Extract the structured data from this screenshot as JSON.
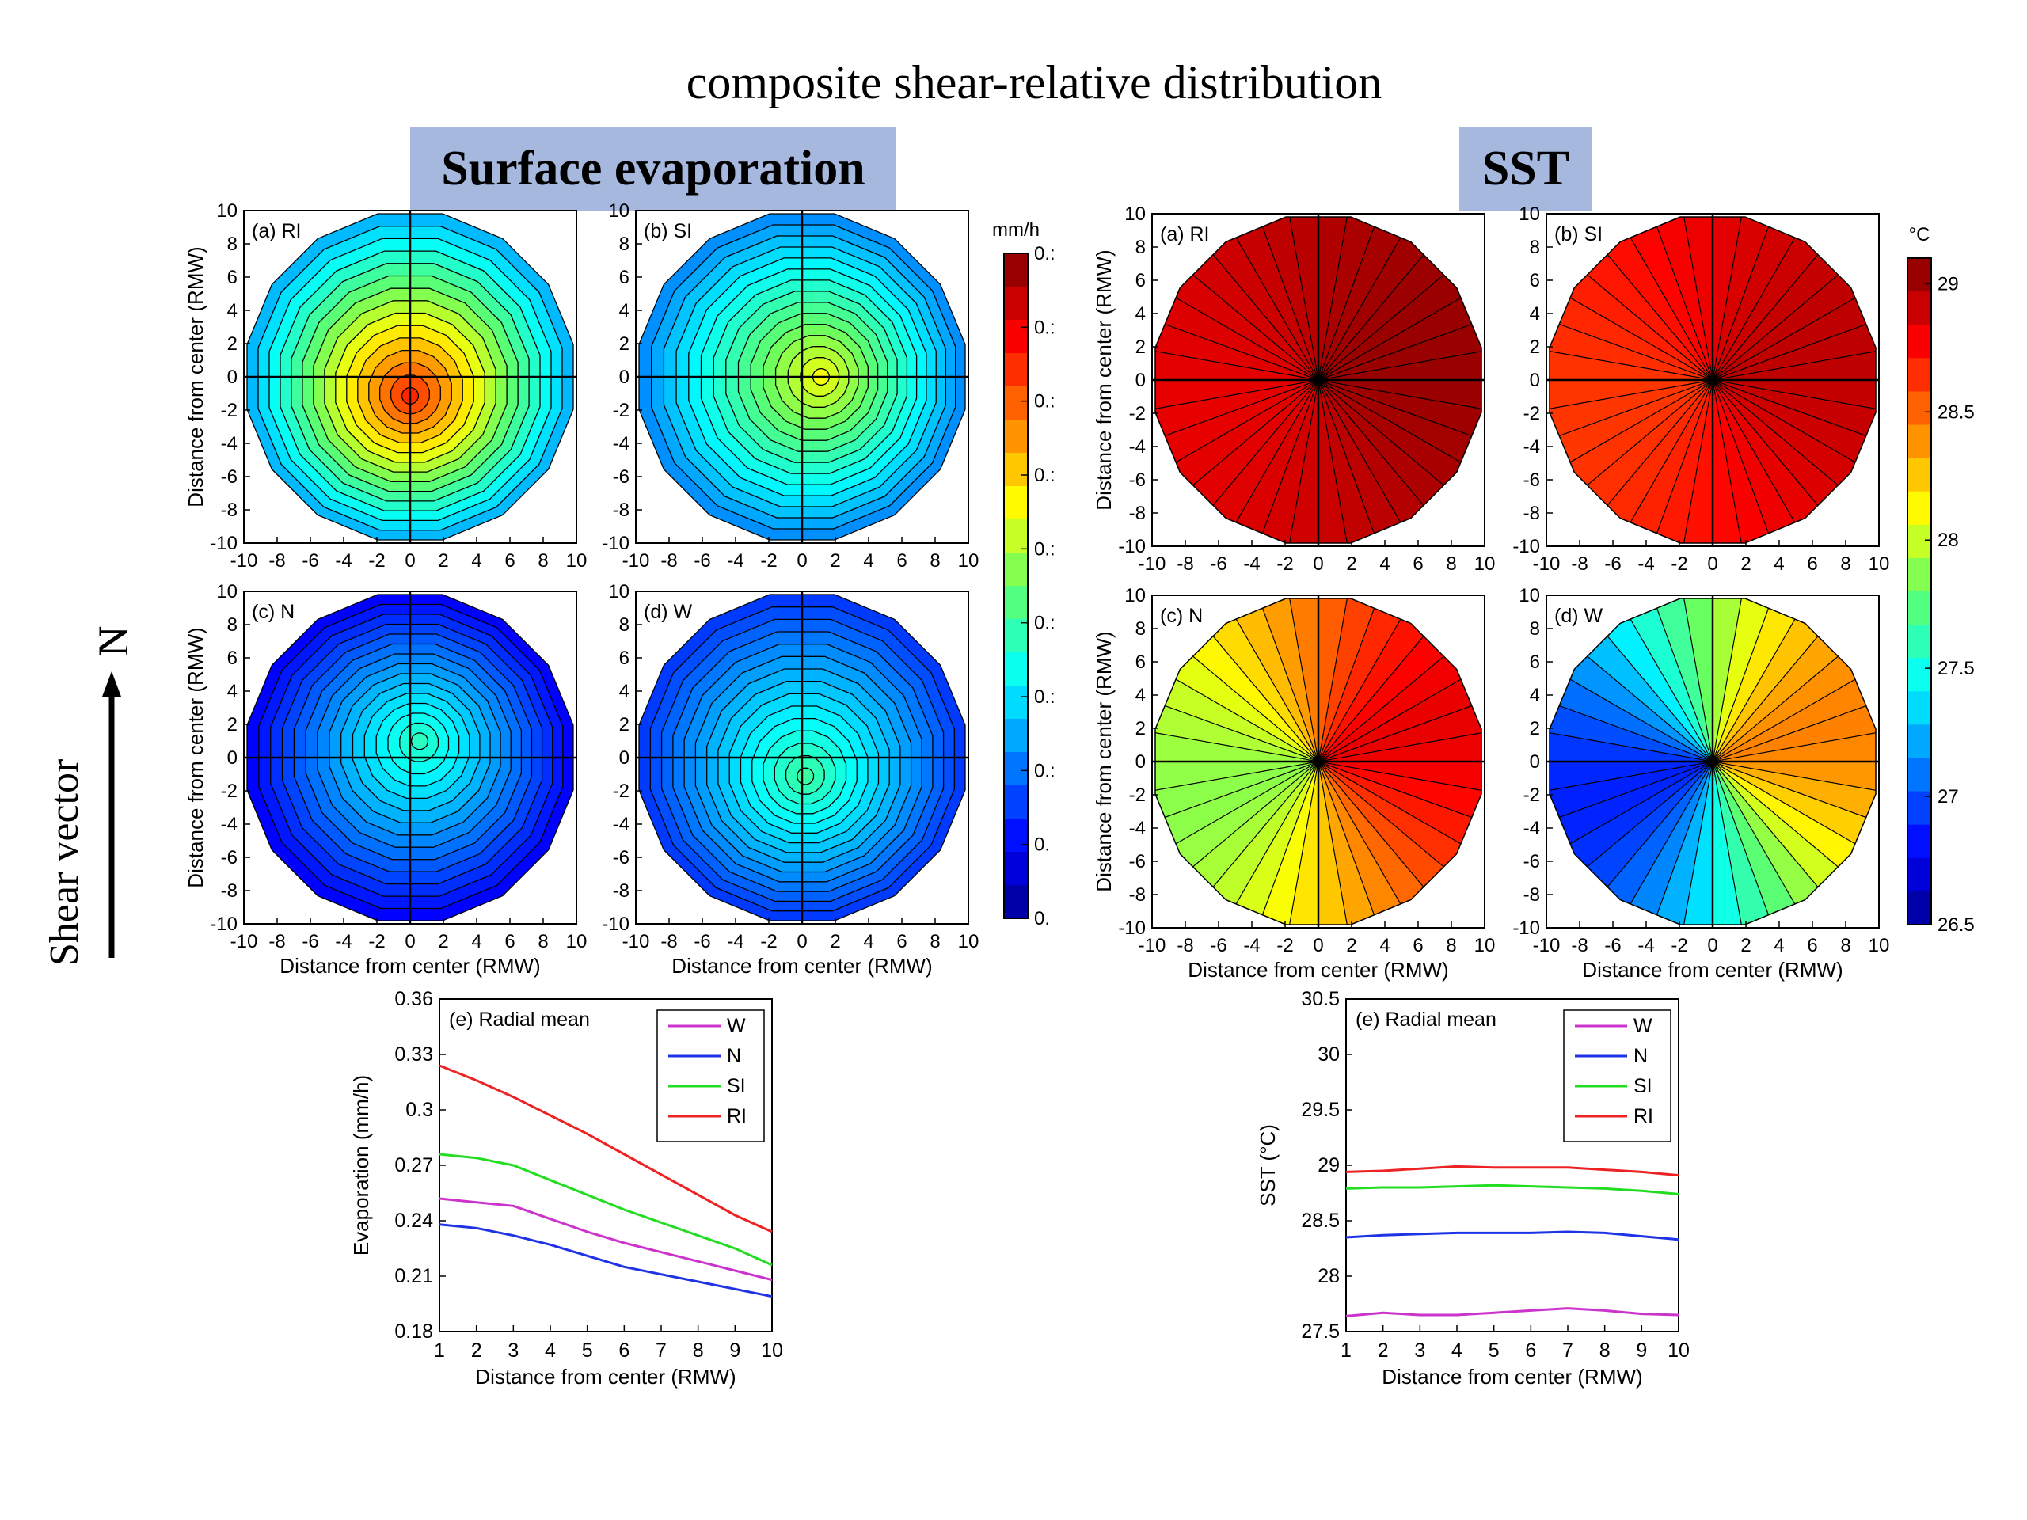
{
  "title": "composite shear-relative distribution",
  "banners": {
    "evap": "Surface evaporation",
    "sst": "SST"
  },
  "shear": {
    "label": "Shear vector",
    "direction": "N"
  },
  "colors": {
    "banner": "#a6b8dd",
    "W": "#cc33cc",
    "N": "#1f33e6",
    "SI": "#22dd22",
    "RI": "#ee2222"
  },
  "chart_data": [
    {
      "type": "heatmap",
      "variable": "Surface evaporation",
      "colorbar": {
        "unit": "mm/h",
        "range": [
          0.18,
          0.36
        ],
        "ticks": [
          "0.:",
          "0.:",
          "0.:",
          "0.:",
          "0.:",
          "0.:",
          "0.:",
          "0.:",
          "0.",
          "0."
        ]
      },
      "xlabel": "Distance from center (RMW)",
      "ylabel": "Distance from center (RMW)",
      "xlim": [
        -10,
        10
      ],
      "ylim": [
        -10,
        10
      ],
      "ticks": [
        -10,
        -8,
        -6,
        -4,
        -2,
        0,
        2,
        4,
        6,
        8,
        10
      ],
      "panels": [
        {
          "label": "(a) RI",
          "center": 0.33,
          "edge": 0.2325,
          "peak_angle_deg": -90,
          "asym": 0.006
        },
        {
          "label": "(b) SI",
          "center": 0.29,
          "edge": 0.225,
          "peak_angle_deg": 0,
          "asym": 0.004
        },
        {
          "label": "(c) N",
          "center": 0.255,
          "edge": 0.2,
          "peak_angle_deg": 60,
          "asym": 0.004
        },
        {
          "label": "(d) W",
          "center": 0.26,
          "edge": 0.21,
          "peak_angle_deg": -80,
          "asym": 0.005
        }
      ]
    },
    {
      "type": "heatmap",
      "variable": "SST",
      "colorbar": {
        "unit": "°C",
        "range": [
          26.5,
          29.1
        ],
        "ticks": [
          29,
          28.5,
          28,
          27.5,
          27,
          26.5
        ]
      },
      "xlabel": "Distance from center (RMW)",
      "ylabel": "Distance from center (RMW)",
      "xlim": [
        -10,
        10
      ],
      "ylim": [
        -10,
        10
      ],
      "ticks": [
        -10,
        -8,
        -6,
        -4,
        -2,
        0,
        2,
        4,
        6,
        8,
        10
      ],
      "panels": [
        {
          "label": "(a) RI",
          "mean": 28.93,
          "east_west_diff": 0.2
        },
        {
          "label": "(b) SI",
          "mean": 28.78,
          "east_west_diff": 0.3
        },
        {
          "label": "(c) N",
          "mean": 28.35,
          "east_west_diff": 0.9
        },
        {
          "label": "(d) W",
          "mean": 27.65,
          "east_west_diff": 1.5
        }
      ]
    },
    {
      "type": "line",
      "title": "(e) Radial mean",
      "xlabel": "Distance from center (RMW)",
      "ylabel": "Evaporation (mm/h)",
      "xlim": [
        1,
        10
      ],
      "ylim": [
        0.18,
        0.36
      ],
      "xticks": [
        1,
        2,
        3,
        4,
        5,
        6,
        7,
        8,
        9,
        10
      ],
      "yticks": [
        "0.18",
        "0.21",
        "0.24",
        "0.27",
        "0.3",
        "0.33",
        "0.36"
      ],
      "yticks_values": [
        0.18,
        0.21,
        0.24,
        0.27,
        0.3,
        0.33,
        0.36
      ],
      "x": [
        1,
        2,
        3,
        4,
        5,
        6,
        7,
        8,
        9,
        10
      ],
      "series": [
        {
          "name": "W",
          "values": [
            0.252,
            0.25,
            0.248,
            0.241,
            0.234,
            0.228,
            0.223,
            0.218,
            0.213,
            0.208
          ]
        },
        {
          "name": "N",
          "values": [
            0.238,
            0.236,
            0.232,
            0.227,
            0.221,
            0.215,
            0.211,
            0.207,
            0.203,
            0.199
          ]
        },
        {
          "name": "SI",
          "values": [
            0.276,
            0.274,
            0.27,
            0.262,
            0.254,
            0.246,
            0.239,
            0.232,
            0.225,
            0.216
          ]
        },
        {
          "name": "RI",
          "values": [
            0.324,
            0.316,
            0.307,
            0.297,
            0.287,
            0.276,
            0.265,
            0.254,
            0.243,
            0.234
          ]
        }
      ],
      "legend": "top-right"
    },
    {
      "type": "line",
      "title": "(e) Radial mean",
      "xlabel": "Distance from center (RMW)",
      "ylabel": "SST (°C)",
      "xlim": [
        1,
        10
      ],
      "ylim": [
        27.5,
        30.5
      ],
      "xticks": [
        1,
        2,
        3,
        4,
        5,
        6,
        7,
        8,
        9,
        10
      ],
      "yticks": [
        "27.5",
        "28",
        "28.5",
        "29",
        "29.5",
        "30",
        "30.5"
      ],
      "yticks_values": [
        27.5,
        28,
        28.5,
        29,
        29.5,
        30,
        30.5
      ],
      "x": [
        1,
        2,
        3,
        4,
        5,
        6,
        7,
        8,
        9,
        10
      ],
      "series": [
        {
          "name": "W",
          "values": [
            27.64,
            27.67,
            27.65,
            27.65,
            27.67,
            27.69,
            27.71,
            27.69,
            27.66,
            27.65
          ]
        },
        {
          "name": "N",
          "values": [
            28.35,
            28.37,
            28.38,
            28.39,
            28.39,
            28.39,
            28.4,
            28.39,
            28.36,
            28.33
          ]
        },
        {
          "name": "SI",
          "values": [
            28.79,
            28.8,
            28.8,
            28.81,
            28.82,
            28.81,
            28.8,
            28.79,
            28.77,
            28.74
          ]
        },
        {
          "name": "RI",
          "values": [
            28.94,
            28.95,
            28.97,
            28.99,
            28.98,
            28.98,
            28.98,
            28.96,
            28.94,
            28.91
          ]
        }
      ],
      "legend": "top-right"
    }
  ]
}
